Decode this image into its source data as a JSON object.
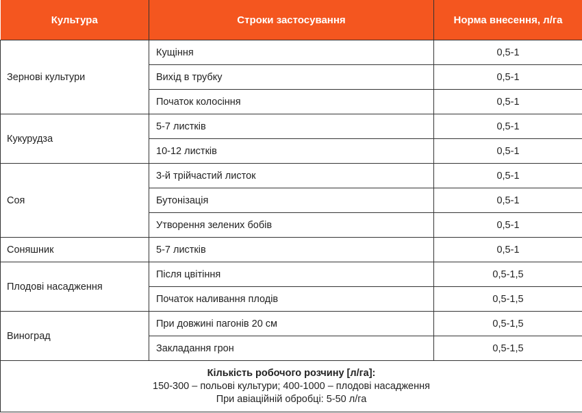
{
  "header": {
    "col1": "Культура",
    "col2": "Строки застосування",
    "col3": "Норма внесення, л/га"
  },
  "colors": {
    "header_bg": "#F4561F",
    "header_text": "#FFFFFF",
    "border": "#333333"
  },
  "rows": [
    {
      "crop": "Зернові культури",
      "stages": [
        {
          "stage": "Кущіння",
          "rate": "0,5-1"
        },
        {
          "stage": "Вихід в трубку",
          "rate": "0,5-1"
        },
        {
          "stage": "Початок колосіння",
          "rate": "0,5-1"
        }
      ]
    },
    {
      "crop": "Кукурудза",
      "stages": [
        {
          "stage": "5-7 листків",
          "rate": "0,5-1"
        },
        {
          "stage": "10-12 листків",
          "rate": "0,5-1"
        }
      ]
    },
    {
      "crop": "Соя",
      "stages": [
        {
          "stage": "3-й трійчастий листок",
          "rate": "0,5-1"
        },
        {
          "stage": "Бутонізація",
          "rate": "0,5-1"
        },
        {
          "stage": "Утворення зелених бобів",
          "rate": "0,5-1"
        }
      ]
    },
    {
      "crop": "Соняшник",
      "stages": [
        {
          "stage": "5-7 листків",
          "rate": "0,5-1"
        }
      ]
    },
    {
      "crop": "Плодові насадження",
      "stages": [
        {
          "stage": "Після цвітіння",
          "rate": "0,5-1,5"
        },
        {
          "stage": "Початок наливання плодів",
          "rate": "0,5-1,5"
        }
      ]
    },
    {
      "crop": "Виноград",
      "stages": [
        {
          "stage": "При довжині пагонів 20 см",
          "rate": "0,5-1,5"
        },
        {
          "stage": "Закладання грон",
          "rate": "0,5-1,5"
        }
      ]
    }
  ],
  "footer": {
    "title": "Кількість робочого розчину [л/га]:",
    "line1": "150-300 – польові культури; 400-1000 – плодові насадження",
    "line2": "При авіаційній обробці: 5-50 л/га"
  }
}
